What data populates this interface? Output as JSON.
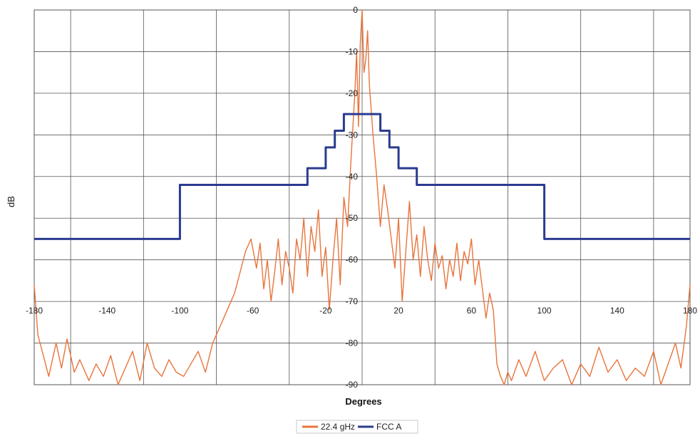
{
  "chart_data": {
    "type": "line",
    "xlabel": "Degrees",
    "ylabel": "dB",
    "xlim": [
      -180,
      180
    ],
    "ylim": [
      -90,
      0
    ],
    "x_tick_values": [
      -180,
      -140,
      -100,
      -60,
      -20,
      20,
      60,
      100,
      140,
      180
    ],
    "x_tick_labels": [
      "-180",
      "-140",
      "-100",
      "-60",
      "-20",
      "20",
      "60",
      "100",
      "140",
      "180"
    ],
    "y_tick_values": [
      0,
      -10,
      -20,
      -30,
      -40,
      -50,
      -60,
      -70,
      -80,
      -90
    ],
    "y_tick_labels": [
      "0",
      "-10",
      "-20",
      "-30",
      "-40",
      "-50",
      "-60",
      "-70",
      "-80",
      "-90"
    ],
    "x_gridlines": [
      -160,
      -120,
      -80,
      -40,
      0,
      40,
      80,
      120,
      160
    ],
    "grid": true,
    "legend_position": "bottom-center",
    "series": [
      {
        "name": "22.4 gHz",
        "color": "#e8743b",
        "x": [
          -180,
          -178,
          -175,
          -172,
          -168,
          -165,
          -162,
          -158,
          -155,
          -150,
          -146,
          -142,
          -138,
          -134,
          -130,
          -126,
          -122,
          -118,
          -114,
          -110,
          -106,
          -102,
          -98,
          -94,
          -90,
          -86,
          -82,
          -78,
          -74,
          -70,
          -67,
          -64,
          -61,
          -58,
          -56,
          -54,
          -52,
          -50,
          -48,
          -46,
          -44,
          -42,
          -40,
          -38,
          -36,
          -34,
          -32,
          -30,
          -28,
          -26,
          -24,
          -22,
          -20,
          -18,
          -16,
          -14,
          -12,
          -10,
          -8,
          -6,
          -4,
          -3,
          -2,
          -1,
          0,
          1,
          2,
          3,
          4,
          6,
          8,
          10,
          12,
          14,
          16,
          18,
          20,
          22,
          24,
          26,
          28,
          30,
          32,
          34,
          36,
          38,
          40,
          42,
          44,
          46,
          48,
          50,
          52,
          54,
          56,
          58,
          60,
          62,
          64,
          66,
          68,
          70,
          72,
          74,
          76,
          78,
          80,
          82,
          86,
          90,
          95,
          100,
          105,
          110,
          115,
          120,
          125,
          130,
          135,
          140,
          145,
          150,
          155,
          160,
          164,
          168,
          172,
          175,
          178,
          180
        ],
        "y": [
          -66,
          -78,
          -83,
          -88,
          -80,
          -86,
          -79,
          -87,
          -84,
          -89,
          -85,
          -88,
          -83,
          -90,
          -86,
          -82,
          -89,
          -80,
          -86,
          -88,
          -84,
          -87,
          -88,
          -85,
          -82,
          -87,
          -80,
          -76,
          -72,
          -68,
          -63,
          -58,
          -55,
          -62,
          -56,
          -67,
          -60,
          -70,
          -63,
          -55,
          -66,
          -58,
          -62,
          -68,
          -55,
          -60,
          -50,
          -64,
          -52,
          -58,
          -48,
          -64,
          -57,
          -72,
          -60,
          -50,
          -66,
          -45,
          -52,
          -35,
          -20,
          -10,
          -28,
          -8,
          0,
          -15,
          -12,
          -5,
          -18,
          -30,
          -40,
          -52,
          -42,
          -48,
          -55,
          -62,
          -50,
          -70,
          -58,
          -46,
          -60,
          -54,
          -64,
          -52,
          -60,
          -65,
          -56,
          -62,
          -59,
          -67,
          -60,
          -64,
          -56,
          -65,
          -58,
          -61,
          -55,
          -66,
          -60,
          -67,
          -74,
          -68,
          -72,
          -85,
          -88,
          -90,
          -87,
          -89,
          -84,
          -88,
          -82,
          -89,
          -86,
          -84,
          -90,
          -85,
          -88,
          -81,
          -87,
          -84,
          -89,
          -86,
          -88,
          -82,
          -90,
          -85,
          -80,
          -86,
          -76,
          -66
        ]
      },
      {
        "name": "FCC A",
        "color": "#2a3b8f",
        "x": [
          -180,
          -100,
          -100,
          -30,
          -30,
          -20,
          -20,
          -15,
          -15,
          -10,
          -10,
          10,
          10,
          15,
          15,
          20,
          20,
          30,
          30,
          100,
          100,
          180
        ],
        "y": [
          -55,
          -55,
          -42,
          -42,
          -38,
          -38,
          -33,
          -33,
          -29,
          -29,
          -25,
          -25,
          -29,
          -29,
          -33,
          -33,
          -38,
          -38,
          -42,
          -42,
          -55,
          -55
        ]
      }
    ]
  }
}
